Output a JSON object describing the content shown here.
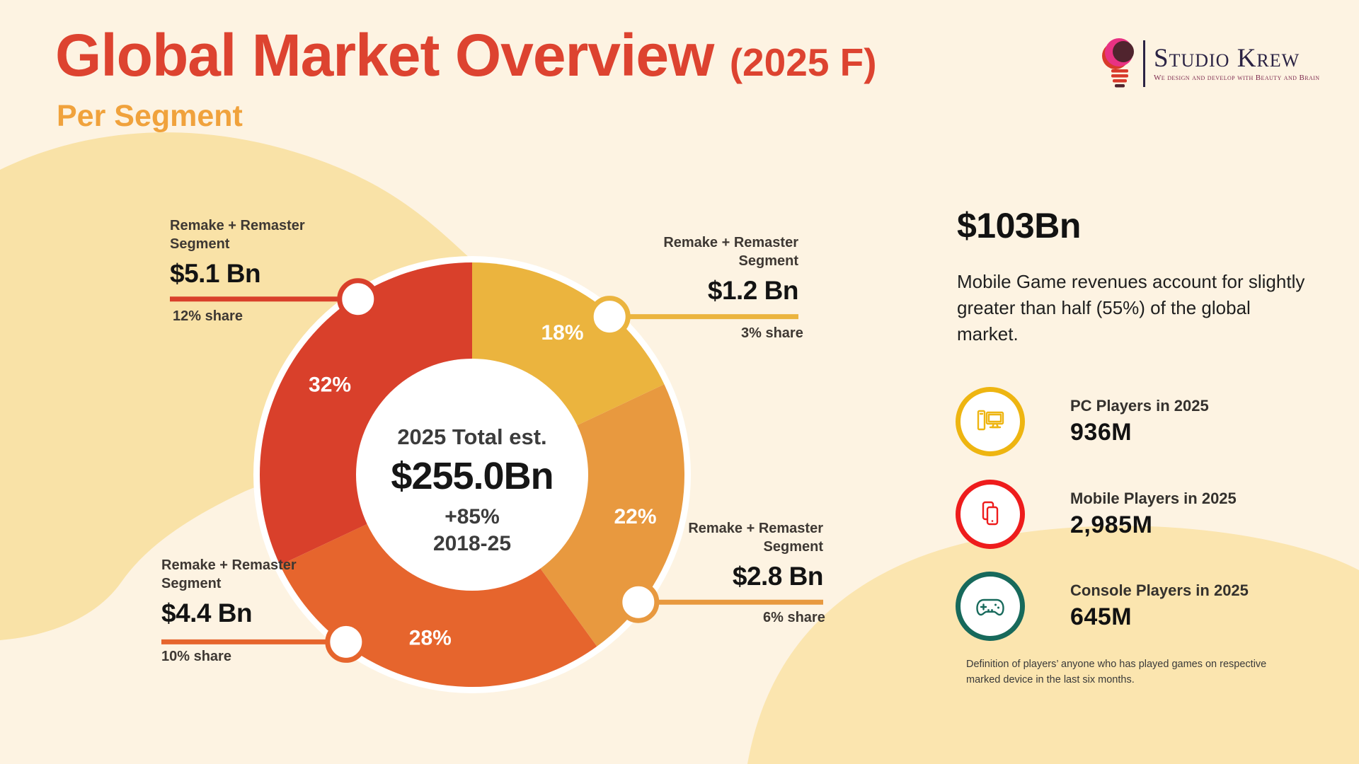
{
  "header": {
    "title": "Global Market Overview",
    "title_suffix": "(2025 F)",
    "subtitle": "Per Segment"
  },
  "logo": {
    "name": "Studio Krew",
    "tagline": "We design and develop with Beauty and Brain"
  },
  "chart_data": {
    "type": "pie",
    "subtype": "donut",
    "center": {
      "label": "2025 Total est.",
      "value": "$255.0Bn",
      "growth": "+85%",
      "period": "2018-25"
    },
    "segments": [
      {
        "label": "Remake + Remaster Segment",
        "percent": 18,
        "value": "$1.2 Bn",
        "share": "3% share",
        "color": "#EBB43E"
      },
      {
        "label": "Remake + Remaster Segment",
        "percent": 22,
        "value": "$2.8 Bn",
        "share": "6% share",
        "color": "#E8993F"
      },
      {
        "label": "Remake + Remaster Segment",
        "percent": 28,
        "value": "$4.4 Bn",
        "share": "10% share",
        "color": "#E6652D"
      },
      {
        "label": "Remake + Remaster Segment",
        "percent": 32,
        "value": "$5.1 Bn",
        "share": "12% share",
        "color": "#D9402B"
      }
    ],
    "legend": "none",
    "total_label_position": "center"
  },
  "right_panel": {
    "headline": "$103Bn",
    "description": "Mobile Game revenues account for slightly greater than half (55%) of the global market.",
    "stats": [
      {
        "icon": "pc-icon",
        "label": "PC Players in 2025",
        "value": "936M",
        "color": "#EEB511"
      },
      {
        "icon": "mobile-icon",
        "label": "Mobile Players in 2025",
        "value": "2,985M",
        "color": "#EE1C1C"
      },
      {
        "icon": "console-icon",
        "label": "Console Players in 2025",
        "value": "645M",
        "color": "#17695B"
      }
    ],
    "footnote": "Definition of players’ anyone who has played games on respective marked device in the last six months."
  }
}
